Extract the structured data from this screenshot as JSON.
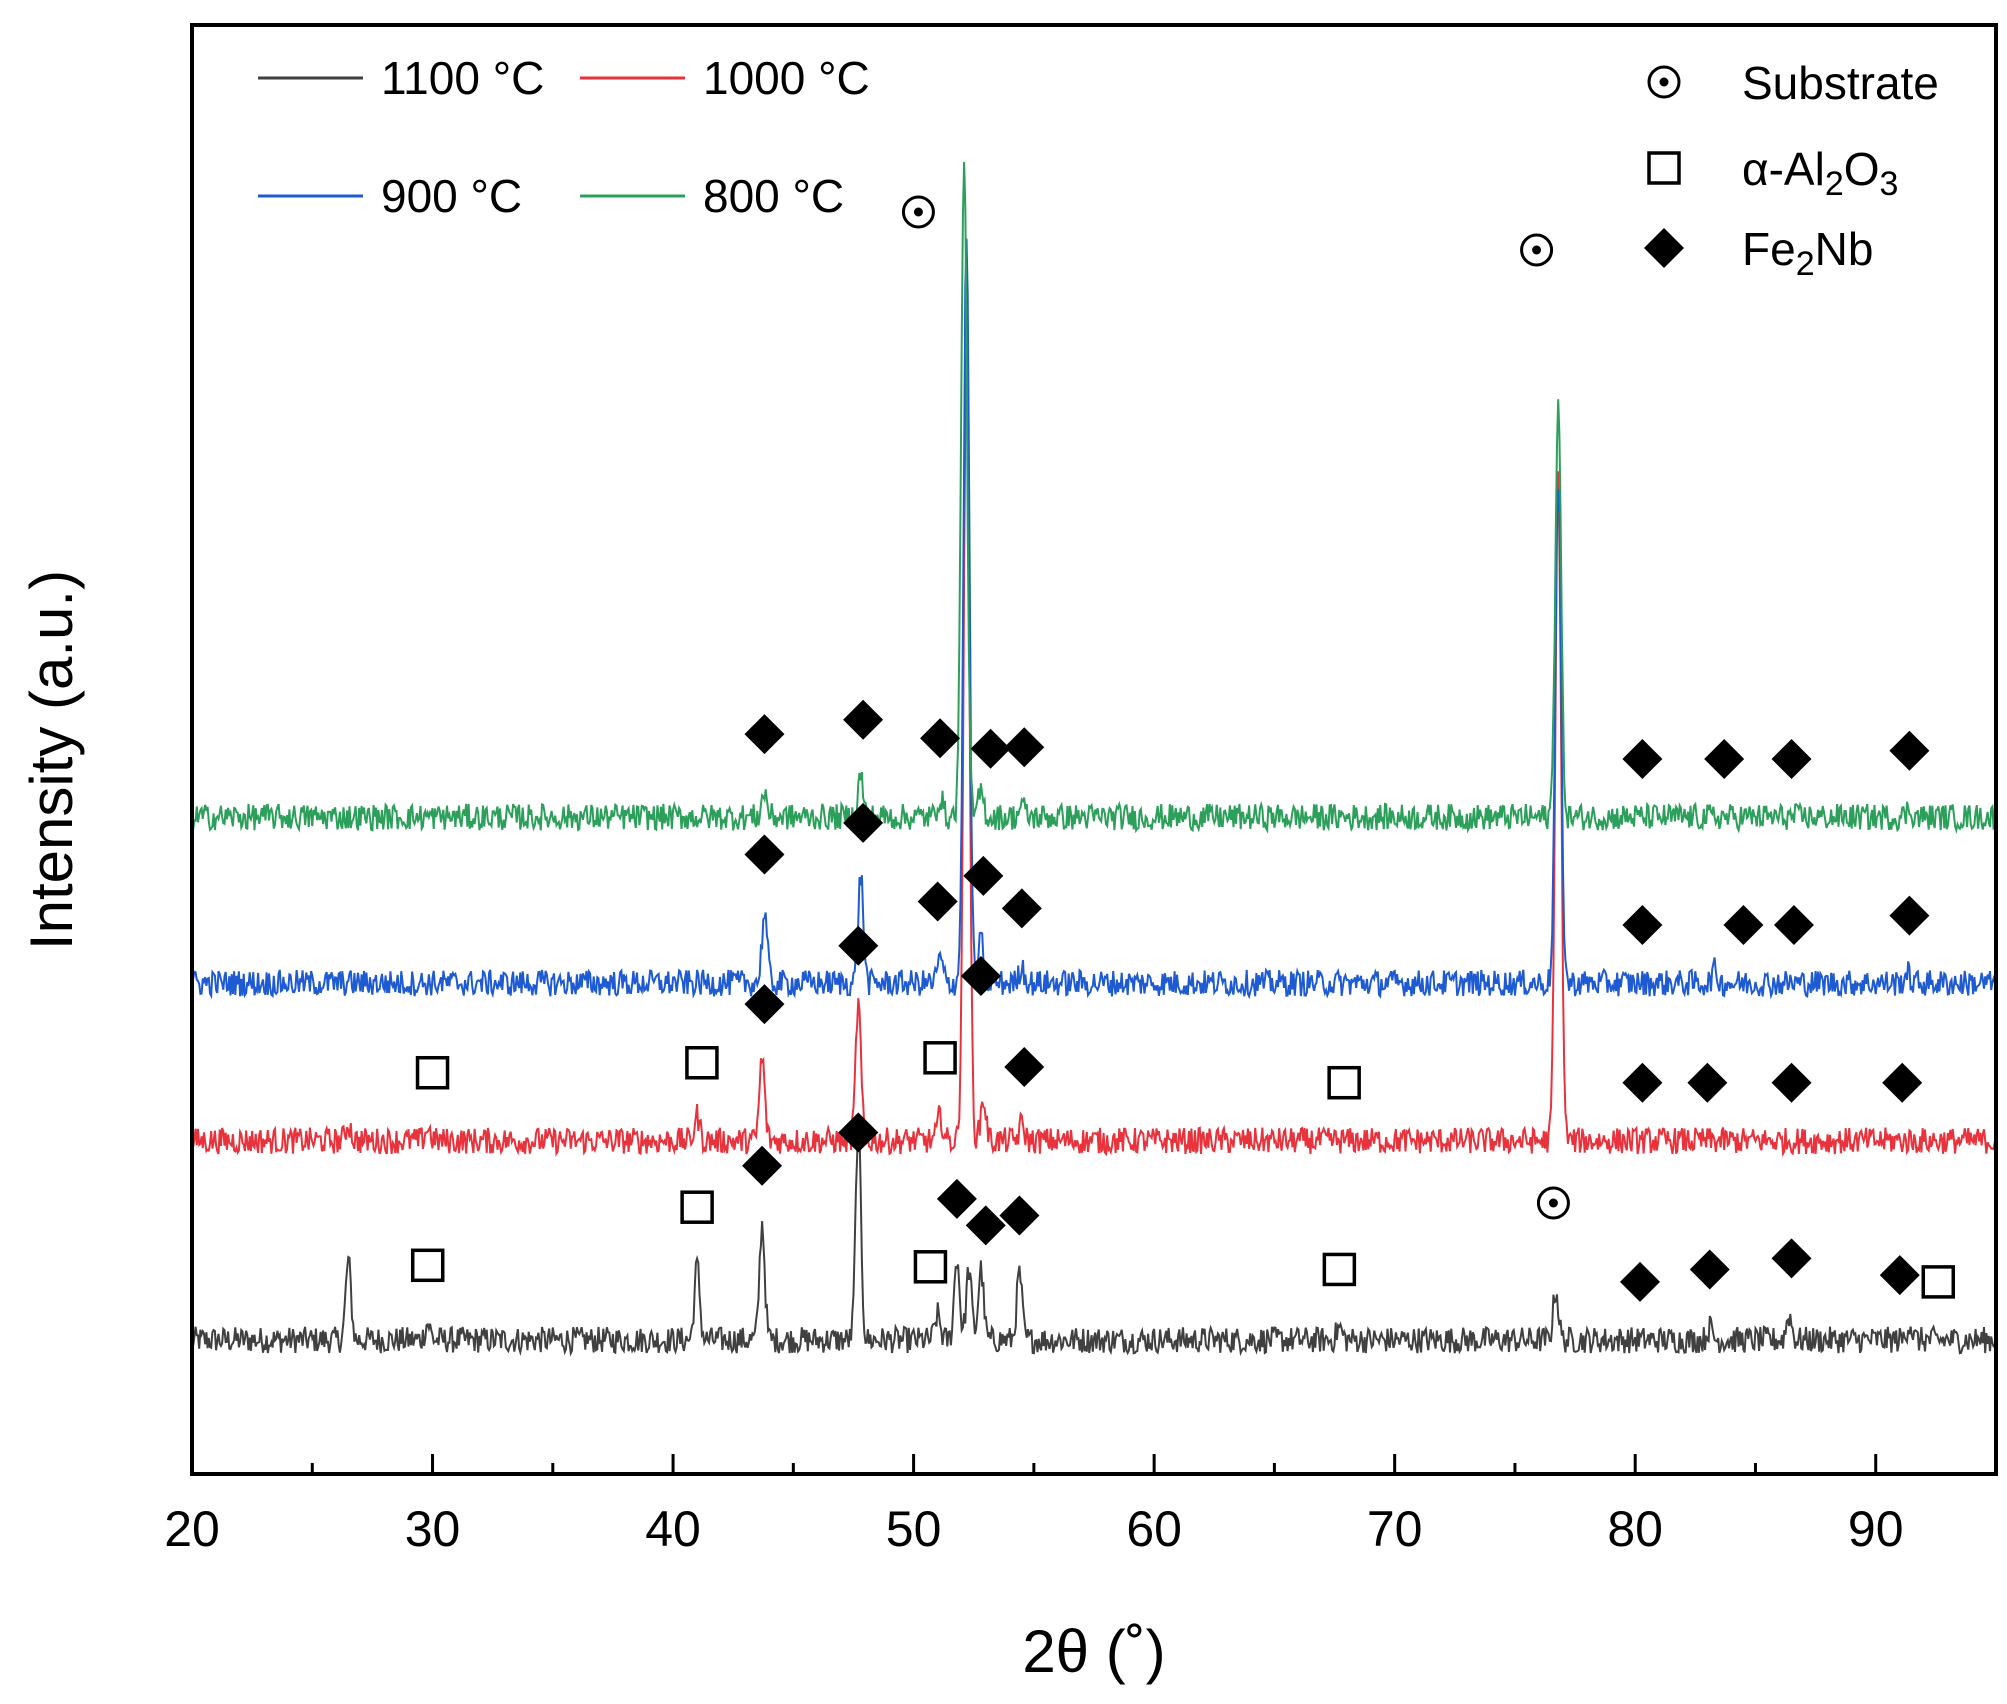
{
  "chart_data": {
    "type": "line",
    "title": "",
    "xlabel": "2θ (˚)",
    "ylabel": "Intensity (a.u.)",
    "xlim": [
      20,
      95
    ],
    "xticks": [
      20,
      30,
      40,
      50,
      60,
      70,
      80,
      90
    ],
    "yticks_shown": false,
    "grid": false,
    "legend_position": "top-left",
    "series": [
      {
        "name": "1100 °C",
        "color": "#404040",
        "baseline": 0.0,
        "peaks": [
          [
            26.5,
            0.95
          ],
          [
            29.8,
            0.2
          ],
          [
            41.0,
            0.9
          ],
          [
            43.7,
            1.4
          ],
          [
            47.7,
            2.6
          ],
          [
            51.0,
            0.3
          ],
          [
            51.8,
            1.0
          ],
          [
            52.3,
            0.85
          ],
          [
            52.8,
            0.85
          ],
          [
            54.4,
            0.8
          ],
          [
            67.7,
            0.15
          ],
          [
            76.7,
            0.6
          ],
          [
            83.1,
            0.15
          ],
          [
            86.4,
            0.3
          ],
          [
            91.4,
            0.2
          ]
        ]
      },
      {
        "name": "1000 °C",
        "color": "#e8323c",
        "baseline": 2.4,
        "peaks": [
          [
            26.5,
            0.2
          ],
          [
            29.8,
            0.15
          ],
          [
            41.0,
            0.3
          ],
          [
            43.7,
            1.0
          ],
          [
            47.7,
            1.65
          ],
          [
            51.1,
            0.3
          ],
          [
            52.2,
            9.5
          ],
          [
            52.9,
            0.5
          ],
          [
            54.5,
            0.2
          ],
          [
            76.8,
            8.0
          ]
        ]
      },
      {
        "name": "900 °C",
        "color": "#1e5ad2",
        "baseline": 4.3,
        "peaks": [
          [
            43.8,
            0.85
          ],
          [
            47.8,
            1.3
          ],
          [
            51.1,
            0.3
          ],
          [
            52.2,
            9.0
          ],
          [
            52.8,
            0.5
          ],
          [
            54.5,
            0.2
          ],
          [
            76.8,
            6.0
          ],
          [
            83.3,
            0.15
          ],
          [
            91.3,
            0.12
          ]
        ]
      },
      {
        "name": "800 °C",
        "color": "#2ca05a",
        "baseline": 6.3,
        "peaks": [
          [
            43.8,
            0.3
          ],
          [
            47.8,
            0.5
          ],
          [
            51.1,
            0.25
          ],
          [
            52.1,
            8.0
          ],
          [
            52.8,
            0.3
          ],
          [
            54.5,
            0.15
          ],
          [
            76.8,
            5.0
          ],
          [
            91.4,
            0.1
          ]
        ]
      }
    ],
    "markers": [
      {
        "type": "diamond",
        "x": [
          43.8,
          47.9,
          51.1,
          53.2,
          54.6,
          80.3,
          83.7,
          86.5,
          91.4
        ],
        "series": "800 °C"
      },
      {
        "type": "diamond",
        "x": [
          43.8,
          47.9,
          51.0,
          52.9,
          54.5,
          80.3,
          84.5,
          86.6,
          91.4
        ],
        "series": "900 °C"
      },
      {
        "type": "diamond",
        "x": [
          43.8,
          47.7,
          52.8,
          54.6,
          80.3,
          83.0,
          86.5,
          91.1
        ],
        "series": "1000 °C"
      },
      {
        "type": "square",
        "x": [
          30.0,
          41.2,
          51.1,
          67.9
        ],
        "series": "1000 °C"
      },
      {
        "type": "diamond",
        "x": [
          43.7,
          47.7,
          51.8,
          53.0,
          54.4,
          80.2,
          83.1,
          86.5,
          91.0
        ],
        "series": "1100 °C"
      },
      {
        "type": "square",
        "x": [
          29.8,
          41.0,
          50.7,
          67.7,
          92.6
        ],
        "series": "1100 °C"
      },
      {
        "type": "circle-dot",
        "x": [
          50.2,
          75.9
        ],
        "series": "800 °C"
      },
      {
        "type": "circle-dot",
        "x": [
          76.6
        ],
        "series": "1100 °C"
      }
    ],
    "legend": [
      {
        "label": "1100 °C",
        "color": "#404040"
      },
      {
        "label": "1000 °C",
        "color": "#e8323c"
      },
      {
        "label": "900 °C",
        "color": "#1e5ad2"
      },
      {
        "label": "800 °C",
        "color": "#2ca05a"
      }
    ],
    "phase_legend": [
      {
        "symbol": "circle-dot",
        "label": "Substrate",
        "formula": [
          [
            "Substrate",
            ""
          ]
        ]
      },
      {
        "symbol": "square",
        "label": "α-Al2O3",
        "formula": [
          [
            "α-Al",
            ""
          ],
          [
            "2",
            "sub"
          ],
          [
            "O",
            ""
          ],
          [
            "3",
            "sub"
          ]
        ]
      },
      {
        "symbol": "diamond",
        "label": "Fe2Nb",
        "formula": [
          [
            "Fe",
            ""
          ],
          [
            "2",
            "sub"
          ],
          [
            "Nb",
            ""
          ]
        ]
      }
    ]
  }
}
